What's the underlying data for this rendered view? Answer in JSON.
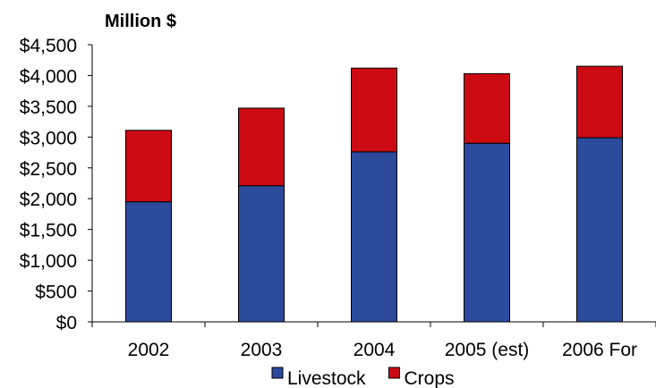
{
  "chart_data": {
    "type": "bar",
    "stacked": true,
    "ylabel": "Million $",
    "xlabel": "",
    "categories": [
      "2002",
      "2003",
      "2004",
      "2005 (est)",
      "2006 For"
    ],
    "series": [
      {
        "name": "Livestock",
        "color": "#2b4a9c",
        "values": [
          1950,
          2210,
          2760,
          2900,
          2990
        ]
      },
      {
        "name": "Crops",
        "color": "#cc0a12",
        "values": [
          1160,
          1260,
          1360,
          1130,
          1160
        ]
      }
    ],
    "ylim": [
      0,
      4500
    ],
    "yticks": [
      0,
      500,
      1000,
      1500,
      2000,
      2500,
      3000,
      3500,
      4000,
      4500
    ],
    "ytick_labels": [
      "$0",
      "$500",
      "$1,000",
      "$1,500",
      "$2,000",
      "$2,500",
      "$3,000",
      "$3,500",
      "$4,000",
      "$4,500"
    ],
    "grid": false,
    "legend_position": "bottom"
  }
}
